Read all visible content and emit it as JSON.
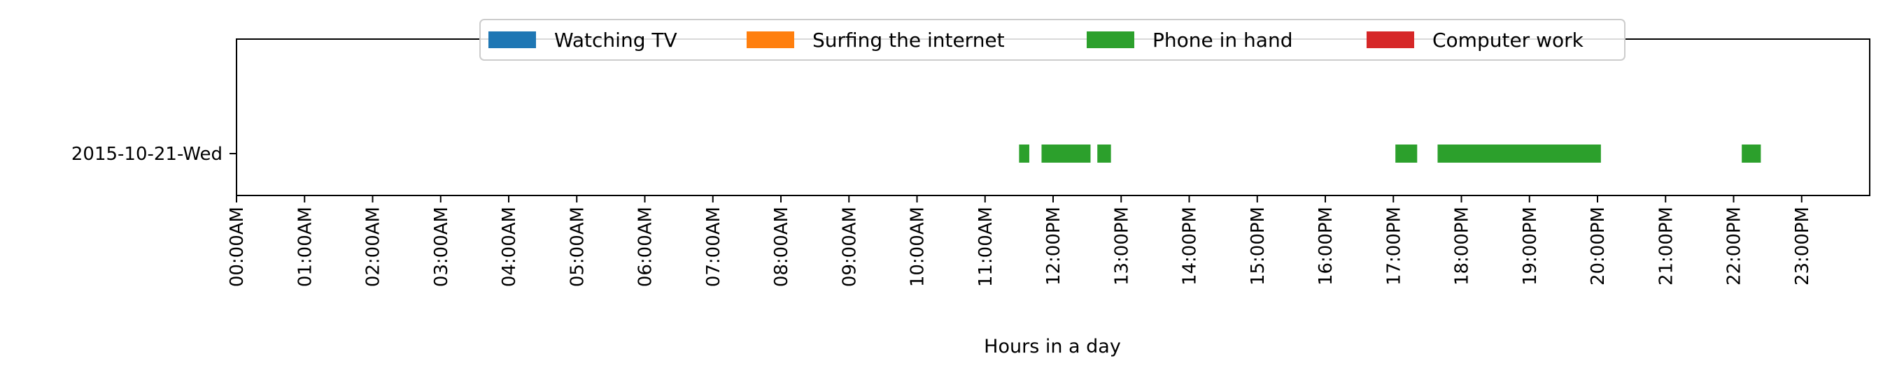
{
  "chart_data": {
    "type": "bar",
    "orientation": "horizontal-timeline",
    "title": "",
    "xlabel": "Hours in a day",
    "ylabel": "",
    "xlim": [
      0,
      24
    ],
    "x_ticks": [
      "00:00AM",
      "01:00AM",
      "02:00AM",
      "03:00AM",
      "04:00AM",
      "05:00AM",
      "06:00AM",
      "07:00AM",
      "08:00AM",
      "09:00AM",
      "10:00AM",
      "11:00AM",
      "12:00PM",
      "13:00PM",
      "14:00PM",
      "15:00PM",
      "16:00PM",
      "17:00PM",
      "18:00PM",
      "19:00PM",
      "20:00PM",
      "21:00PM",
      "22:00PM",
      "23:00PM"
    ],
    "categories": [
      "2015-10-21-Wed"
    ],
    "grid": false,
    "legend_position": "top-center",
    "series": [
      {
        "name": "Watching TV",
        "color": "#1f77b4",
        "intervals": []
      },
      {
        "name": "Surfing the internet",
        "color": "#ff7f0e",
        "intervals": []
      },
      {
        "name": "Phone in hand",
        "color": "#2ca02c",
        "intervals": [
          {
            "category": "2015-10-21-Wed",
            "start": 11.5,
            "end": 11.65
          },
          {
            "category": "2015-10-21-Wed",
            "start": 11.83,
            "end": 12.55
          },
          {
            "category": "2015-10-21-Wed",
            "start": 12.65,
            "end": 12.85
          },
          {
            "category": "2015-10-21-Wed",
            "start": 17.03,
            "end": 17.35
          },
          {
            "category": "2015-10-21-Wed",
            "start": 17.65,
            "end": 20.05
          },
          {
            "category": "2015-10-21-Wed",
            "start": 22.12,
            "end": 22.4
          }
        ]
      },
      {
        "name": "Computer work",
        "color": "#d62728",
        "intervals": []
      }
    ]
  }
}
